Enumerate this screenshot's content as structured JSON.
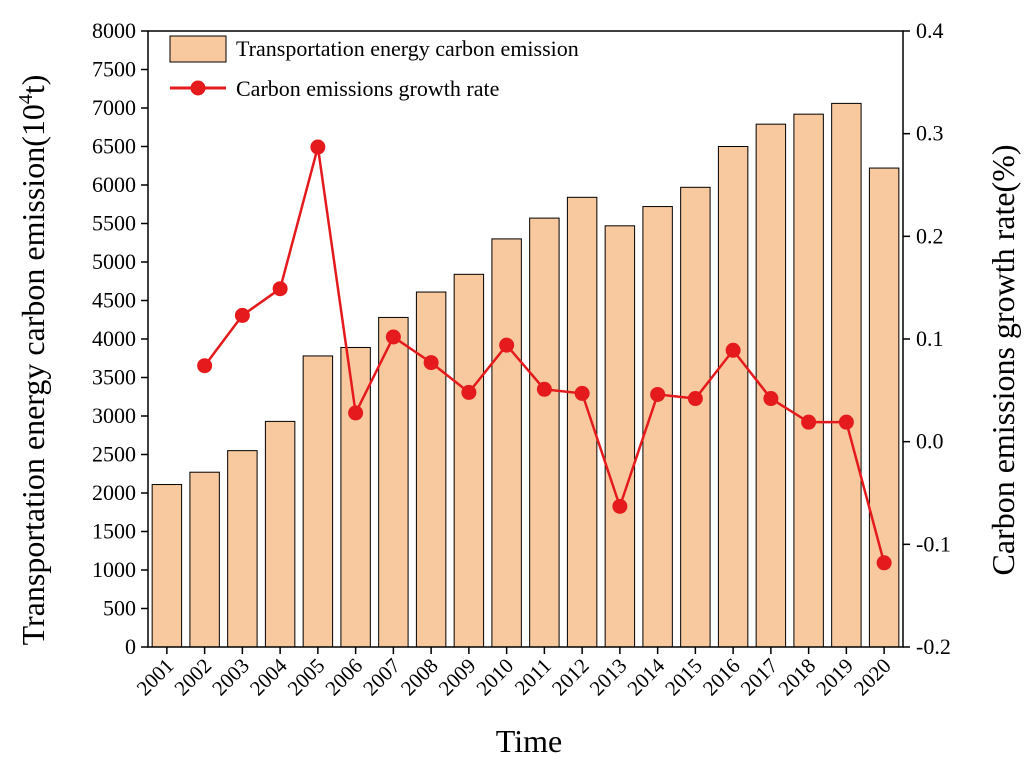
{
  "chart_data": {
    "type": "bar",
    "xlabel": "Time",
    "categories": [
      "2001",
      "2002",
      "2003",
      "2004",
      "2005",
      "2006",
      "2007",
      "2008",
      "2009",
      "2010",
      "2011",
      "2012",
      "2013",
      "2014",
      "2015",
      "2016",
      "2017",
      "2018",
      "2019",
      "2020"
    ],
    "series": [
      {
        "name": "Transportation energy carbon emission",
        "type": "bar",
        "axis": "left",
        "color": "#f8c89f",
        "values": [
          2110,
          2270,
          2550,
          2930,
          3780,
          3890,
          4280,
          4610,
          4840,
          5300,
          5570,
          5840,
          5470,
          5720,
          5970,
          6500,
          6790,
          6920,
          7060,
          6220
        ]
      },
      {
        "name": "Carbon emissions growth rate",
        "type": "line",
        "axis": "right",
        "color": "#e41a1c",
        "values": [
          null,
          0.074,
          0.123,
          0.149,
          0.287,
          0.028,
          0.102,
          0.077,
          0.048,
          0.094,
          0.051,
          0.047,
          -0.063,
          0.046,
          0.042,
          0.089,
          0.042,
          0.019,
          0.019,
          -0.118
        ]
      }
    ],
    "y_left": {
      "label": "Transportation energy carbon emission(10",
      "label_sup": "4",
      "label_tail": "t)",
      "lim": [
        0,
        8000
      ],
      "ticks": [
        "0",
        "500",
        "1000",
        "1500",
        "2000",
        "2500",
        "3000",
        "3500",
        "4000",
        "4500",
        "5000",
        "5500",
        "6000",
        "6500",
        "7000",
        "7500",
        "8000"
      ]
    },
    "y_right": {
      "label": "Carbon emissions growth rate(%)",
      "lim": [
        -0.2,
        0.4
      ],
      "ticks": [
        "-0.2",
        "-0.1",
        "0.0",
        "0.1",
        "0.2",
        "0.3",
        "0.4"
      ]
    },
    "grid": false,
    "legend_position": "top-left"
  }
}
